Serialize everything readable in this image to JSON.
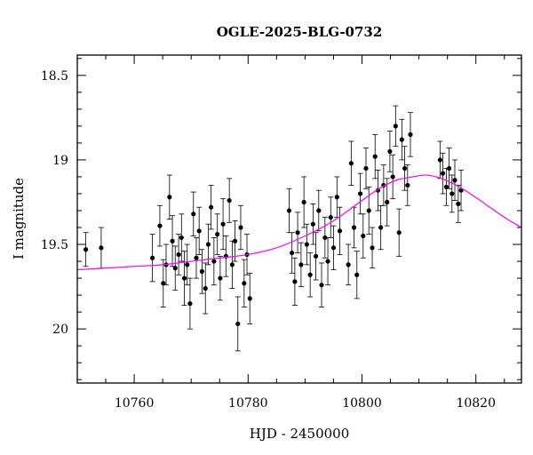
{
  "chart_data": {
    "type": "scatter",
    "title": "OGLE-2025-BLG-0732",
    "xlabel": "HJD - 2450000",
    "ylabel": "I magnitude",
    "xlim": [
      10750,
      10828
    ],
    "ylim": [
      20.32,
      18.38
    ],
    "y_inverted": true,
    "x_ticks": [
      "10760",
      "10780",
      "10800",
      "10820"
    ],
    "y_ticks": [
      "18.5",
      "19",
      "19.5",
      "20"
    ],
    "grid": false,
    "legend": "none",
    "colors": {
      "points": "#000000",
      "model": "#ff00ff"
    },
    "series": [
      {
        "kind": "points_with_errors",
        "points": [
          [
            10751.5,
            19.53,
            0.1
          ],
          [
            10754.2,
            19.52,
            0.12
          ],
          [
            10763.2,
            19.58,
            0.14
          ],
          [
            10764.5,
            19.39,
            0.12
          ],
          [
            10765.1,
            19.73,
            0.14
          ],
          [
            10765.6,
            19.62,
            0.12
          ],
          [
            10766.2,
            19.22,
            0.13
          ],
          [
            10766.7,
            19.48,
            0.15
          ],
          [
            10767.2,
            19.64,
            0.13
          ],
          [
            10767.8,
            19.56,
            0.12
          ],
          [
            10768.3,
            19.46,
            0.14
          ],
          [
            10768.8,
            19.7,
            0.16
          ],
          [
            10769.3,
            19.62,
            0.12
          ],
          [
            10769.8,
            19.85,
            0.15
          ],
          [
            10770.4,
            19.32,
            0.13
          ],
          [
            10770.9,
            19.58,
            0.12
          ],
          [
            10771.4,
            19.42,
            0.14
          ],
          [
            10771.9,
            19.66,
            0.13
          ],
          [
            10772.5,
            19.76,
            0.15
          ],
          [
            10773.0,
            19.5,
            0.12
          ],
          [
            10773.5,
            19.28,
            0.13
          ],
          [
            10774.0,
            19.6,
            0.14
          ],
          [
            10774.6,
            19.44,
            0.12
          ],
          [
            10775.1,
            19.7,
            0.13
          ],
          [
            10775.6,
            19.38,
            0.15
          ],
          [
            10776.1,
            19.57,
            0.12
          ],
          [
            10776.7,
            19.24,
            0.13
          ],
          [
            10777.2,
            19.62,
            0.14
          ],
          [
            10777.7,
            19.48,
            0.12
          ],
          [
            10778.2,
            19.97,
            0.16
          ],
          [
            10778.7,
            19.4,
            0.13
          ],
          [
            10779.3,
            19.73,
            0.14
          ],
          [
            10779.8,
            19.56,
            0.12
          ],
          [
            10780.3,
            19.82,
            0.15
          ],
          [
            10787.2,
            19.3,
            0.13
          ],
          [
            10787.7,
            19.55,
            0.12
          ],
          [
            10788.2,
            19.72,
            0.14
          ],
          [
            10788.7,
            19.43,
            0.12
          ],
          [
            10789.3,
            19.62,
            0.13
          ],
          [
            10789.8,
            19.25,
            0.15
          ],
          [
            10790.3,
            19.5,
            0.12
          ],
          [
            10790.9,
            19.68,
            0.13
          ],
          [
            10791.4,
            19.38,
            0.12
          ],
          [
            10791.9,
            19.57,
            0.14
          ],
          [
            10792.4,
            19.3,
            0.12
          ],
          [
            10792.9,
            19.74,
            0.13
          ],
          [
            10793.5,
            19.46,
            0.12
          ],
          [
            10794.0,
            19.6,
            0.14
          ],
          [
            10794.5,
            19.34,
            0.12
          ],
          [
            10795.0,
            19.52,
            0.13
          ],
          [
            10795.6,
            19.22,
            0.12
          ],
          [
            10796.1,
            19.42,
            0.14
          ],
          [
            10797.6,
            19.62,
            0.12
          ],
          [
            10798.1,
            19.02,
            0.13
          ],
          [
            10798.6,
            19.4,
            0.12
          ],
          [
            10799.1,
            19.68,
            0.14
          ],
          [
            10799.7,
            19.2,
            0.12
          ],
          [
            10800.2,
            19.45,
            0.13
          ],
          [
            10800.7,
            19.05,
            0.12
          ],
          [
            10801.2,
            19.3,
            0.14
          ],
          [
            10801.8,
            19.52,
            0.12
          ],
          [
            10802.3,
            18.98,
            0.13
          ],
          [
            10802.8,
            19.18,
            0.12
          ],
          [
            10803.3,
            19.4,
            0.13
          ],
          [
            10803.8,
            19.15,
            0.12
          ],
          [
            10804.4,
            19.25,
            0.14
          ],
          [
            10804.9,
            18.95,
            0.12
          ],
          [
            10805.4,
            19.1,
            0.13
          ],
          [
            10805.9,
            18.8,
            0.12
          ],
          [
            10806.5,
            19.43,
            0.14
          ],
          [
            10807.0,
            18.88,
            0.12
          ],
          [
            10807.5,
            19.05,
            0.13
          ],
          [
            10808.0,
            19.15,
            0.12
          ],
          [
            10808.5,
            18.85,
            0.13
          ],
          [
            10813.7,
            19.0,
            0.11
          ],
          [
            10814.2,
            19.08,
            0.12
          ],
          [
            10814.8,
            19.16,
            0.11
          ],
          [
            10815.3,
            19.05,
            0.12
          ],
          [
            10815.8,
            19.2,
            0.11
          ],
          [
            10816.3,
            19.12,
            0.12
          ],
          [
            10816.9,
            19.26,
            0.11
          ],
          [
            10817.4,
            19.18,
            0.12
          ]
        ]
      },
      {
        "kind": "model_curve",
        "x": [
          10750,
          10755,
          10760,
          10765,
          10770,
          10775,
          10780,
          10785,
          10790,
          10795,
          10800,
          10803,
          10806,
          10809,
          10811,
          10813,
          10816,
          10819,
          10822,
          10825,
          10828
        ],
        "y": [
          19.65,
          19.64,
          19.63,
          19.62,
          19.6,
          19.58,
          19.56,
          19.52,
          19.45,
          19.36,
          19.24,
          19.17,
          19.12,
          19.1,
          19.09,
          19.1,
          19.14,
          19.2,
          19.27,
          19.34,
          19.4
        ]
      }
    ]
  }
}
